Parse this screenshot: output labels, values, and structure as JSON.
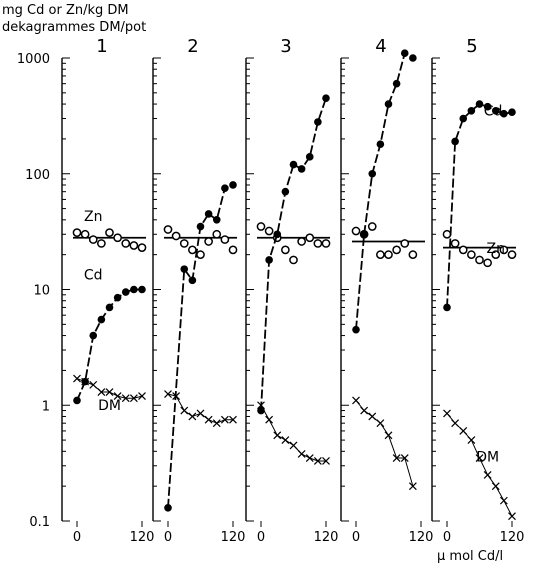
{
  "figure": {
    "ylabel_line1": "mg Cd or Zn/kg DM",
    "ylabel_line2": "dekagrammes DM/pot",
    "xlabel": "μ mol Cd/l",
    "ytick_labels": [
      "1000",
      "100",
      "10",
      "1",
      "0.1"
    ]
  },
  "chart_data": {
    "type": "scatter",
    "yscale": "log",
    "ylim": [
      0.1,
      1000
    ],
    "yticks": [
      1000,
      100,
      10,
      1,
      0.1
    ],
    "xlim": [
      0,
      120
    ],
    "xticks": [
      0,
      120
    ],
    "panels": [
      {
        "title": "1",
        "series": [
          {
            "name": "Zn",
            "marker": "open-circle",
            "fit": "flat",
            "fit_level": 28,
            "x": [
              0,
              15,
              30,
              45,
              60,
              75,
              90,
              105,
              120
            ],
            "y": [
              31,
              30,
              27,
              25,
              31,
              28,
              25,
              24,
              23
            ]
          },
          {
            "name": "Cd",
            "marker": "filled-circle",
            "fit": "curve",
            "x": [
              0,
              15,
              30,
              45,
              60,
              75,
              90,
              105,
              120
            ],
            "y": [
              1.1,
              1.6,
              4,
              5.5,
              7,
              8.5,
              9.5,
              10,
              10
            ]
          },
          {
            "name": "DM",
            "marker": "cross",
            "fit": "curve",
            "x": [
              0,
              15,
              30,
              45,
              60,
              75,
              90,
              105,
              120
            ],
            "y": [
              1.7,
              1.6,
              1.5,
              1.3,
              1.3,
              1.2,
              1.15,
              1.15,
              1.2
            ]
          }
        ]
      },
      {
        "title": "2",
        "series": [
          {
            "name": "Zn",
            "marker": "open-circle",
            "fit": "flat",
            "fit_level": 28,
            "x": [
              0,
              15,
              30,
              45,
              60,
              75,
              90,
              105,
              120
            ],
            "y": [
              33,
              29,
              25,
              22,
              20,
              26,
              30,
              27,
              22
            ]
          },
          {
            "name": "Cd",
            "marker": "filled-circle",
            "fit": "curve",
            "x": [
              0,
              30,
              45,
              60,
              75,
              90,
              105,
              120
            ],
            "y": [
              0.13,
              15,
              12,
              35,
              45,
              40,
              75,
              80
            ]
          },
          {
            "name": "DM",
            "marker": "cross",
            "fit": "curve",
            "x": [
              0,
              15,
              30,
              45,
              60,
              75,
              90,
              105,
              120
            ],
            "y": [
              1.25,
              1.2,
              0.9,
              0.8,
              0.85,
              0.75,
              0.7,
              0.75,
              0.75
            ]
          }
        ]
      },
      {
        "title": "3",
        "series": [
          {
            "name": "Zn",
            "marker": "open-circle",
            "fit": "flat",
            "fit_level": 28,
            "x": [
              0,
              15,
              30,
              45,
              60,
              75,
              90,
              105,
              120
            ],
            "y": [
              35,
              32,
              28,
              22,
              18,
              26,
              28,
              25,
              25
            ]
          },
          {
            "name": "Cd",
            "marker": "filled-circle",
            "fit": "curve",
            "x": [
              0,
              15,
              30,
              45,
              60,
              75,
              90,
              105,
              120
            ],
            "y": [
              0.9,
              18,
              30,
              70,
              120,
              110,
              140,
              280,
              450
            ]
          },
          {
            "name": "DM",
            "marker": "cross",
            "fit": "curve",
            "x": [
              0,
              15,
              30,
              45,
              60,
              75,
              90,
              105,
              120
            ],
            "y": [
              1.0,
              0.75,
              0.55,
              0.5,
              0.45,
              0.38,
              0.35,
              0.33,
              0.33
            ]
          }
        ]
      },
      {
        "title": "4",
        "series": [
          {
            "name": "Zn",
            "marker": "open-circle",
            "fit": "flat",
            "fit_level": 26,
            "x": [
              0,
              15,
              30,
              45,
              60,
              75,
              90,
              105
            ],
            "y": [
              32,
              30,
              35,
              20,
              20,
              22,
              25,
              20
            ]
          },
          {
            "name": "Cd",
            "marker": "filled-circle",
            "fit": "curve",
            "x": [
              0,
              15,
              30,
              45,
              60,
              75,
              90,
              105
            ],
            "y": [
              4.5,
              30,
              100,
              180,
              400,
              600,
              1100,
              1000
            ]
          },
          {
            "name": "DM",
            "marker": "cross",
            "fit": "curve",
            "x": [
              0,
              15,
              30,
              45,
              60,
              75,
              90,
              105
            ],
            "y": [
              1.1,
              0.9,
              0.8,
              0.7,
              0.55,
              0.35,
              0.35,
              0.2
            ]
          }
        ]
      },
      {
        "title": "5",
        "series": [
          {
            "name": "Zn",
            "marker": "open-circle",
            "fit": "flat",
            "fit_level": 23,
            "x": [
              0,
              15,
              30,
              45,
              60,
              75,
              90,
              105,
              120
            ],
            "y": [
              30,
              25,
              22,
              20,
              18,
              17,
              20,
              22,
              20
            ]
          },
          {
            "name": "Cd",
            "marker": "filled-circle",
            "fit": "curve",
            "x": [
              0,
              15,
              30,
              45,
              60,
              75,
              90,
              105,
              120
            ],
            "y": [
              7,
              190,
              300,
              350,
              400,
              380,
              350,
              330,
              340
            ]
          },
          {
            "name": "DM",
            "marker": "cross",
            "fit": "curve",
            "x": [
              0,
              15,
              30,
              45,
              60,
              75,
              90,
              105,
              120
            ],
            "y": [
              0.85,
              0.7,
              0.6,
              0.5,
              0.35,
              0.25,
              0.2,
              0.15,
              0.11
            ]
          }
        ]
      }
    ]
  }
}
